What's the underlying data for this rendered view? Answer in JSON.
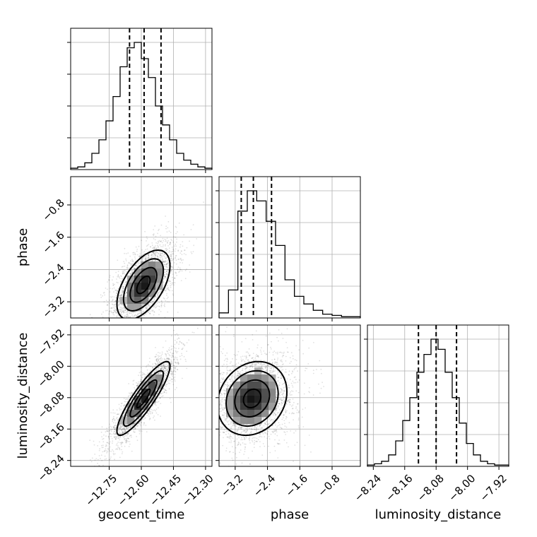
{
  "chart_data": {
    "type": "corner",
    "parameters": [
      {
        "name": "geocent_time",
        "label": "geocent_time",
        "range": [
          -12.93,
          -12.27
        ],
        "ticks": [
          "−12.75",
          "−12.60",
          "−12.45",
          "−12.30"
        ],
        "tick_values": [
          -12.75,
          -12.6,
          -12.45,
          -12.3
        ],
        "quantiles": [
          -12.655,
          -12.587,
          -12.508
        ]
      },
      {
        "name": "phase",
        "label": "phase",
        "range": [
          -3.6,
          -0.1
        ],
        "ticks": [
          "−3.2",
          "−2.4",
          "−1.6",
          "−0.8"
        ],
        "tick_values": [
          -3.2,
          -2.4,
          -1.6,
          -0.8
        ],
        "quantiles": [
          -3.05,
          -2.75,
          -2.3
        ]
      },
      {
        "name": "luminosity_distance",
        "label": "luminosity_distance",
        "range": [
          -8.255,
          -7.895
        ],
        "ticks": [
          "−8.24",
          "−8.16",
          "−8.08",
          "−8.00",
          "−7.92"
        ],
        "tick_values": [
          -8.24,
          -8.16,
          -8.08,
          -8.0,
          -7.92
        ],
        "quantiles": [
          -8.125,
          -8.08,
          -8.028
        ]
      }
    ],
    "histograms": [
      {
        "param": "geocent_time",
        "counts": [
          1,
          2,
          5,
          12,
          22,
          36,
          54,
          76,
          90,
          94,
          82,
          68,
          47,
          33,
          22,
          12,
          7,
          4,
          2,
          1
        ]
      },
      {
        "param": "phase",
        "counts": [
          4,
          22,
          84,
          100,
          92,
          76,
          57,
          30,
          17,
          11,
          6,
          3,
          2,
          1,
          1
        ]
      },
      {
        "param": "luminosity_distance",
        "counts": [
          1,
          2,
          4,
          9,
          20,
          36,
          54,
          74,
          88,
          100,
          92,
          74,
          54,
          34,
          18,
          9,
          4,
          2,
          1,
          1
        ]
      }
    ],
    "pairs": [
      {
        "x": "geocent_time",
        "y": "phase",
        "mean": [
          -12.59,
          -2.78
        ],
        "sd": [
          0.062,
          0.43
        ],
        "corr": 0.55
      },
      {
        "x": "geocent_time",
        "y": "luminosity_distance",
        "mean": [
          -12.59,
          -8.082
        ],
        "sd": [
          0.062,
          0.047
        ],
        "corr": 0.88
      },
      {
        "x": "phase",
        "y": "luminosity_distance",
        "mean": [
          -2.78,
          -8.082
        ],
        "sd": [
          0.43,
          0.047
        ],
        "corr": 0.18
      }
    ],
    "grid": true
  }
}
